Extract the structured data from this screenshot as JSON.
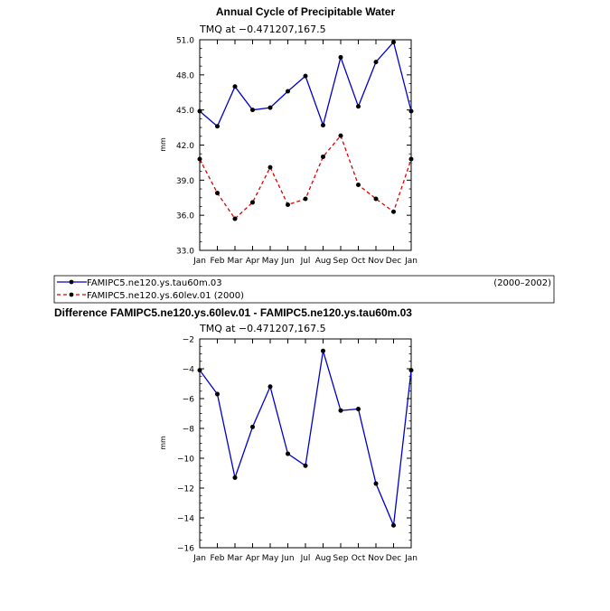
{
  "chart_data": [
    {
      "type": "line",
      "title": "Annual Cycle of Precipitable Water",
      "subtitle": "TMQ at −0.471207,167.5",
      "xlabel": "",
      "ylabel": "mm",
      "categories": [
        "Jan",
        "Feb",
        "Mar",
        "Apr",
        "May",
        "Jun",
        "Jul",
        "Aug",
        "Sep",
        "Oct",
        "Nov",
        "Dec",
        "Jan"
      ],
      "ylim": [
        33.0,
        51.0
      ],
      "yticks": [
        33.0,
        36.0,
        39.0,
        42.0,
        45.0,
        48.0,
        51.0
      ],
      "ytick_labels": [
        "33.0",
        "36.0",
        "39.0",
        "42.0",
        "45.0",
        "48.0",
        "51.0"
      ],
      "grid": false,
      "legend_placement": "below",
      "series": [
        {
          "name": "FAMIPC5.ne120.ys.tau60m.03",
          "period": "(2000–2002)",
          "color": "#0000cc",
          "dash": "solid",
          "values": [
            44.9,
            43.6,
            47.0,
            45.0,
            45.2,
            46.6,
            47.9,
            43.7,
            49.5,
            45.3,
            49.1,
            50.8,
            44.9
          ]
        },
        {
          "name": "FAMIPC5.ne120.ys.60lev.01  (2000)",
          "period": "",
          "color": "#dd0000",
          "dash": "dashed",
          "values": [
            40.8,
            37.9,
            35.7,
            37.1,
            40.1,
            36.9,
            37.4,
            41.0,
            42.8,
            38.6,
            37.4,
            36.3,
            40.8
          ]
        }
      ]
    },
    {
      "type": "line",
      "title": "Difference FAMIPC5.ne120.ys.60lev.01 - FAMIPC5.ne120.ys.tau60m.03",
      "subtitle": "TMQ at −0.471207,167.5",
      "xlabel": "",
      "ylabel": "mm",
      "categories": [
        "Jan",
        "Feb",
        "Mar",
        "Apr",
        "May",
        "Jun",
        "Jul",
        "Aug",
        "Sep",
        "Oct",
        "Nov",
        "Dec",
        "Jan"
      ],
      "ylim": [
        -16,
        -2
      ],
      "yticks": [
        -16,
        -14,
        -12,
        -10,
        -8,
        -6,
        -4,
        -2
      ],
      "ytick_labels": [
        "−16",
        "−14",
        "−12",
        "−10",
        "−8",
        "−6",
        "−4",
        "−2"
      ],
      "grid": false,
      "series": [
        {
          "name": "",
          "color": "#0000cc",
          "dash": "solid",
          "values": [
            -4.1,
            -5.7,
            -11.3,
            -7.9,
            -5.2,
            -9.7,
            -10.5,
            -2.8,
            -6.8,
            -6.7,
            -11.7,
            -14.5,
            -4.1
          ]
        }
      ]
    }
  ]
}
